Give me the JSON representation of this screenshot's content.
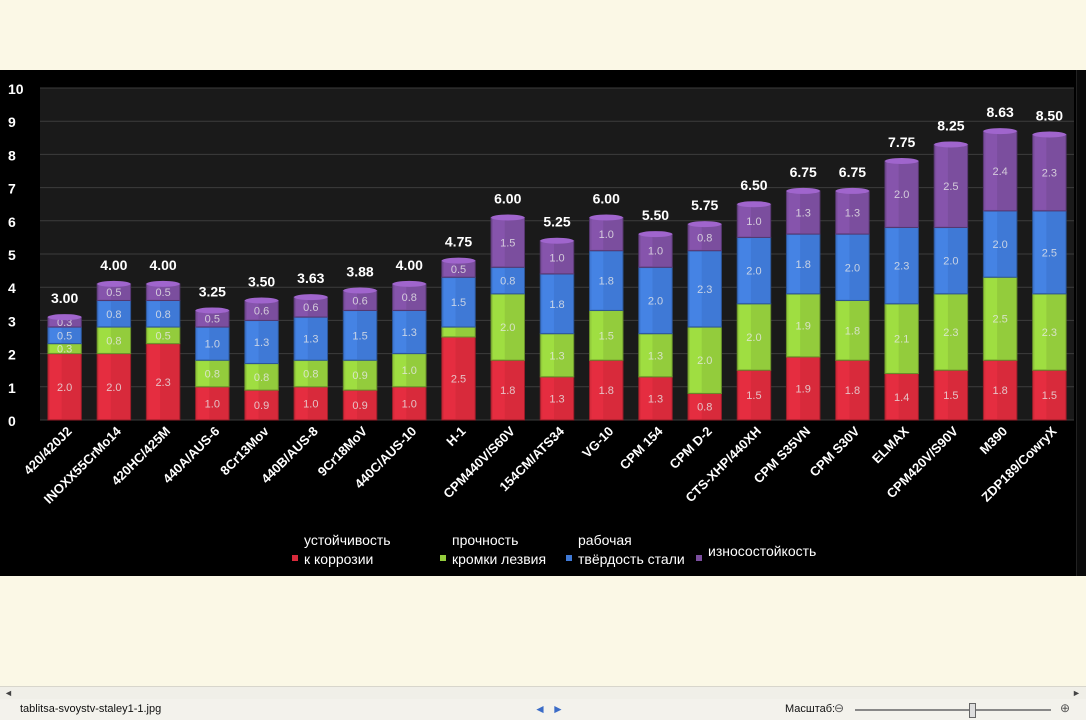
{
  "colors": {
    "background": "#000000",
    "page": "#fbf8e6",
    "grid": "#3c3c3c",
    "series": [
      "#d82a3b",
      "#93cc3c",
      "#3f79d6",
      "#7b4e9e"
    ]
  },
  "chart_data": {
    "type": "bar",
    "stacked": true,
    "ylim": [
      0,
      10
    ],
    "yticks": [
      "0",
      "1",
      "2",
      "3",
      "4",
      "5",
      "6",
      "7",
      "8",
      "9",
      "10"
    ],
    "grid": true,
    "legend_position": "bottom",
    "categories": [
      "420/420J2",
      "INOXX55CrMo14",
      "420HC/425M",
      "440A/AUS-6",
      "8Cr13Mov",
      "440B/AUS-8",
      "9Cr18MoV",
      "440C/AUS-10",
      "H-1",
      "CPM440V/S60V",
      "154CM/ATS34",
      "VG-10",
      "CPM 154",
      "CPM D-2",
      "CTS-XHP/440XH",
      "CPM S35VN",
      "CPM S30V",
      "ELMAX",
      "CPM420V/S90V",
      "M390",
      "ZDP189/CowryX"
    ],
    "totals": [
      "3.00",
      "4.00",
      "4.00",
      "3.25",
      "3.50",
      "3.63",
      "3.88",
      "4.00",
      "4.75",
      "6.00",
      "5.25",
      "6.00",
      "5.50",
      "5.75",
      "6.50",
      "6.75",
      "6.75",
      "7.75",
      "8.25",
      "8.63",
      "8.50"
    ],
    "series": [
      {
        "name": "устойчивость|к коррозии",
        "values": [
          2.0,
          2.0,
          2.3,
          1.0,
          0.9,
          1.0,
          0.9,
          1.0,
          2.5,
          1.8,
          1.3,
          1.8,
          1.3,
          0.8,
          1.5,
          1.9,
          1.8,
          1.4,
          1.5,
          1.8,
          1.5
        ]
      },
      {
        "name": "прочность|кромки лезвия",
        "values": [
          0.3,
          0.8,
          0.5,
          0.8,
          0.8,
          0.8,
          0.9,
          1.0,
          0.3,
          2.0,
          1.3,
          1.5,
          1.3,
          2.0,
          2.0,
          1.9,
          1.8,
          2.1,
          2.3,
          2.5,
          2.3
        ]
      },
      {
        "name": "рабочая|твёрдость стали",
        "values": [
          0.5,
          0.8,
          0.8,
          1.0,
          1.3,
          1.3,
          1.5,
          1.3,
          1.5,
          0.8,
          1.8,
          1.8,
          2.0,
          2.3,
          2.0,
          1.8,
          2.0,
          2.3,
          2.0,
          2.0,
          2.5
        ]
      },
      {
        "name": "износостойкость",
        "values": [
          0.3,
          0.5,
          0.5,
          0.5,
          0.6,
          0.6,
          0.6,
          0.8,
          0.5,
          1.5,
          1.0,
          1.0,
          1.0,
          0.8,
          1.0,
          1.3,
          1.3,
          2.0,
          2.5,
          2.4,
          2.3
        ]
      }
    ],
    "segment_labels": [
      [
        "2.0",
        "0.3",
        "0.5",
        "0.3"
      ],
      [
        "2.0",
        "0.8",
        "0.8",
        "0.5"
      ],
      [
        "2.3",
        "0.5",
        "0.8",
        "0.5"
      ],
      [
        "1.0",
        "0.8",
        "1.0",
        "0.5"
      ],
      [
        "0.9",
        "0.8",
        "1.3",
        "0.6"
      ],
      [
        "1.0",
        "0.8",
        "1.3",
        "0.6"
      ],
      [
        "0.9",
        "0.9",
        "1.5",
        "0.6"
      ],
      [
        "1.0",
        "1.0",
        "1.3",
        "0.8"
      ],
      [
        "2.5",
        "",
        "1.5",
        "0.5"
      ],
      [
        "1.8",
        "2.0",
        "0.8",
        "1.5"
      ],
      [
        "1.3",
        "1.3",
        "1.8",
        "1.0"
      ],
      [
        "1.8",
        "1.5",
        "1.8",
        "1.0"
      ],
      [
        "1.3",
        "1.3",
        "2.0",
        "1.0"
      ],
      [
        "0.8",
        "2.0",
        "2.3",
        "0.8"
      ],
      [
        "1.5",
        "2.0",
        "2.0",
        "1.0"
      ],
      [
        "1.9",
        "1.9",
        "1.8",
        "1.3"
      ],
      [
        "1.8",
        "1.8",
        "2.0",
        "1.3"
      ],
      [
        "1.4",
        "2.1",
        "2.3",
        "2.0"
      ],
      [
        "1.5",
        "2.3",
        "2.0",
        "2.5"
      ],
      [
        "1.8",
        "2.5",
        "2.0",
        "2.4"
      ],
      [
        "1.5",
        "2.3",
        "2.5",
        "2.3"
      ]
    ]
  },
  "statusbar": {
    "filename": "tablitsa-svoystv-staley1-1.jpg",
    "zoom_label": "Масштаб:",
    "zoom_level": 0.58,
    "prev_icon": "◄",
    "next_icon": "►",
    "zoom_out_icon": "⊖",
    "zoom_in_icon": "⊕"
  }
}
